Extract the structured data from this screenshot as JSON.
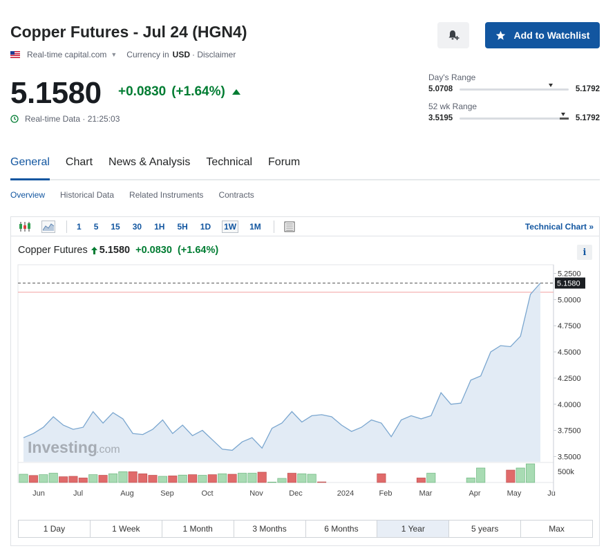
{
  "header": {
    "title": "Copper Futures - Jul 24 (HGN4)",
    "source": "Real-time capital.com",
    "currency_label": "Currency in",
    "currency": "USD",
    "disclaimer": "· Disclaimer",
    "add_watchlist": "Add to Watchlist"
  },
  "quote": {
    "price": "5.1580",
    "change": "+0.0830",
    "change_pct": "(+1.64%)",
    "realtime": "Real-time Data · 21:25:03"
  },
  "days_range": {
    "label": "Day's Range",
    "low": "5.0708",
    "high": "5.1792",
    "position": 0.82
  },
  "wk52_range": {
    "label": "52 wk Range",
    "low": "3.5195",
    "high": "5.1792",
    "position": 0.93
  },
  "tabs": [
    "General",
    "Chart",
    "News & Analysis",
    "Technical",
    "Forum"
  ],
  "subtabs": [
    "Overview",
    "Historical Data",
    "Related Instruments",
    "Contracts"
  ],
  "toolbar": {
    "intervals": [
      "1",
      "5",
      "15",
      "30",
      "1H",
      "5H",
      "1D",
      "1W",
      "1M"
    ],
    "active_interval": "1W",
    "technical_chart": "Technical Chart »"
  },
  "chart_legend": {
    "name": "Copper Futures",
    "price": "5.1580",
    "change": "+0.0830",
    "change_pct": "(+1.64%)"
  },
  "watermark": {
    "brand": "Investing",
    "suffix": ".com"
  },
  "colors": {
    "accent": "#1256a0",
    "positive": "#007c32",
    "negative": "#dc3f3f"
  },
  "chart_data": {
    "type": "area",
    "x_labels": [
      "Jun",
      "Jul",
      "Aug",
      "Sep",
      "Oct",
      "Nov",
      "Dec",
      "2024",
      "Feb",
      "Mar",
      "Apr",
      "May",
      "Ju"
    ],
    "y_ticks": [
      "5.2500",
      "5.0000",
      "4.7500",
      "4.5000",
      "4.2500",
      "4.0000",
      "3.7500",
      "3.5000"
    ],
    "ylim": [
      3.45,
      5.3
    ],
    "last_price": 5.158,
    "last_price_label": "5.1580",
    "reference_level": 5.07,
    "volume_tick": "500k",
    "values": [
      3.68,
      3.72,
      3.78,
      3.88,
      3.8,
      3.76,
      3.78,
      3.93,
      3.82,
      3.92,
      3.86,
      3.72,
      3.71,
      3.76,
      3.85,
      3.72,
      3.8,
      3.7,
      3.75,
      3.66,
      3.57,
      3.56,
      3.64,
      3.68,
      3.58,
      3.77,
      3.82,
      3.93,
      3.83,
      3.89,
      3.9,
      3.88,
      3.8,
      3.74,
      3.78,
      3.85,
      3.82,
      3.69,
      3.85,
      3.89,
      3.86,
      3.89,
      4.11,
      4.0,
      4.01,
      4.23,
      4.27,
      4.5,
      4.56,
      4.55,
      4.65,
      5.05,
      5.158
    ],
    "volume": [
      0.4,
      0.34,
      0.38,
      0.45,
      0.28,
      0.3,
      0.22,
      0.38,
      0.35,
      0.42,
      0.52,
      0.52,
      0.42,
      0.35,
      0.3,
      0.32,
      0.36,
      0.38,
      0.35,
      0.38,
      0.42,
      0.4,
      0.45,
      0.45,
      0.5,
      0.02,
      0.2,
      0.45,
      0.42,
      0.4,
      0.03,
      0.0,
      0.0,
      0.0,
      0.0,
      0.0,
      0.42,
      0.0,
      0.0,
      0.0,
      0.22,
      0.45,
      0.0,
      0.0,
      0.0,
      0.22,
      0.7,
      0.0,
      0.0,
      0.6,
      0.7,
      0.9,
      0.0
    ],
    "volume_dir": [
      "u",
      "d",
      "u",
      "u",
      "d",
      "d",
      "d",
      "u",
      "d",
      "u",
      "u",
      "d",
      "d",
      "d",
      "u",
      "d",
      "u",
      "d",
      "u",
      "d",
      "u",
      "d",
      "u",
      "u",
      "d",
      "u",
      "u",
      "d",
      "u",
      "u",
      "d",
      "u",
      "u",
      "u",
      "u",
      "u",
      "d",
      "u",
      "u",
      "u",
      "d",
      "u",
      "u",
      "u",
      "u",
      "u",
      "u",
      "u",
      "u",
      "d",
      "u",
      "u",
      "u"
    ]
  },
  "periods": [
    "1 Day",
    "1 Week",
    "1 Month",
    "3 Months",
    "6 Months",
    "1 Year",
    "5 years",
    "Max"
  ],
  "active_period": "1 Year"
}
